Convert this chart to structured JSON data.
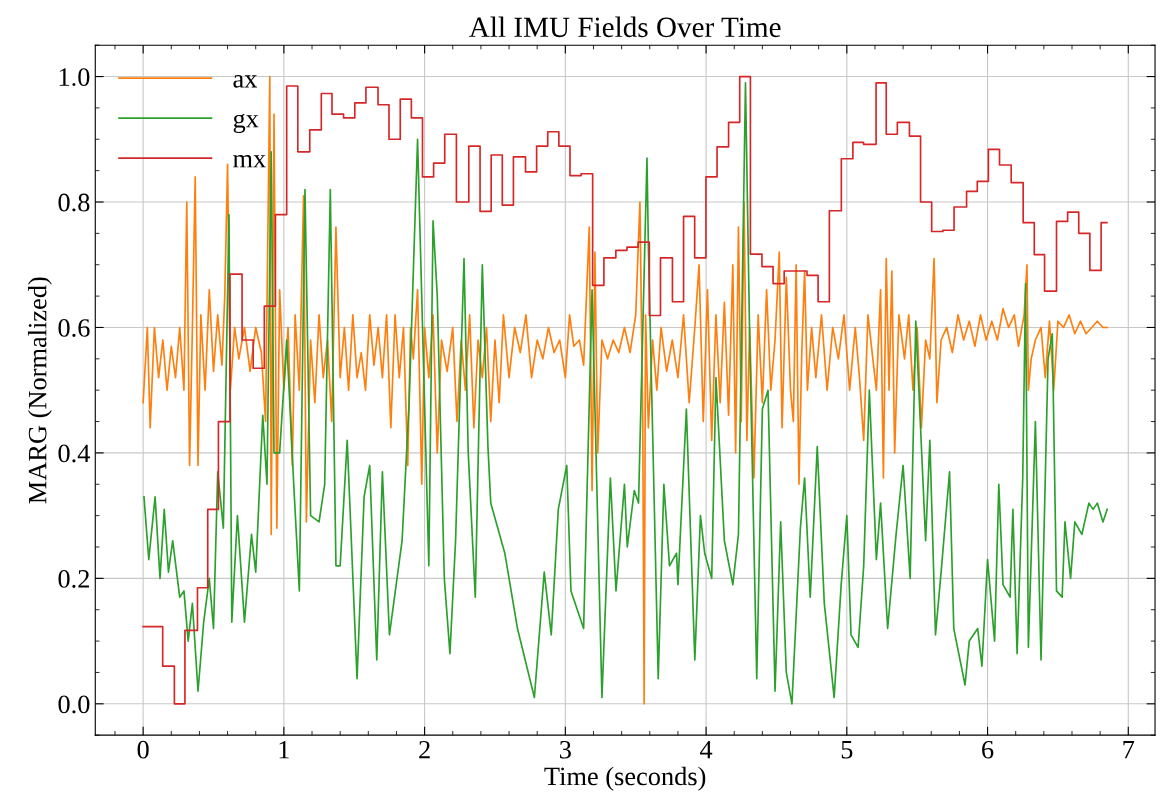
{
  "chart_data": {
    "type": "line",
    "title": "All IMU Fields Over Time",
    "xlabel": "Time (seconds)",
    "ylabel": "MARG (Normalized)",
    "xlim": [
      -0.34,
      7.19
    ],
    "ylim": [
      -0.05,
      1.05
    ],
    "xticks": [
      0,
      1,
      2,
      3,
      4,
      5,
      6,
      7
    ],
    "yticks": [
      {
        "value": 0,
        "label": "0.0"
      },
      {
        "value": 0.2,
        "label": "0.2"
      },
      {
        "value": 0.4,
        "label": "0.4"
      },
      {
        "value": 0.6,
        "label": "0.6"
      },
      {
        "value": 0.8,
        "label": "0.8"
      },
      {
        "value": 1,
        "label": "1.0"
      }
    ],
    "grid": true,
    "legend": "top left",
    "series": [
      {
        "name": "ax",
        "color": "#ff7f0e",
        "x": [
          0.0,
          0.03,
          0.05,
          0.08,
          0.11,
          0.14,
          0.17,
          0.2,
          0.23,
          0.26,
          0.29,
          0.31,
          0.33,
          0.35,
          0.37,
          0.39,
          0.41,
          0.44,
          0.47,
          0.5,
          0.53,
          0.56,
          0.58,
          0.6,
          0.62,
          0.65,
          0.68,
          0.72,
          0.76,
          0.8,
          0.84,
          0.87,
          0.9,
          0.91,
          0.93,
          0.95,
          0.97,
          1.0,
          1.03,
          1.06,
          1.08,
          1.11,
          1.14,
          1.16,
          1.19,
          1.22,
          1.25,
          1.28,
          1.31,
          1.34,
          1.37,
          1.4,
          1.43,
          1.46,
          1.49,
          1.52,
          1.55,
          1.58,
          1.61,
          1.64,
          1.67,
          1.7,
          1.73,
          1.76,
          1.79,
          1.82,
          1.85,
          1.88,
          1.9,
          1.92,
          1.95,
          1.98,
          2.0,
          2.03,
          2.06,
          2.09,
          2.12,
          2.16,
          2.2,
          2.23,
          2.26,
          2.29,
          2.32,
          2.35,
          2.38,
          2.41,
          2.44,
          2.47,
          2.5,
          2.53,
          2.56,
          2.6,
          2.64,
          2.68,
          2.72,
          2.76,
          2.8,
          2.84,
          2.88,
          2.92,
          2.96,
          3.0,
          3.03,
          3.06,
          3.1,
          3.13,
          3.17,
          3.19,
          3.21,
          3.23,
          3.26,
          3.3,
          3.34,
          3.38,
          3.42,
          3.46,
          3.5,
          3.53,
          3.55,
          3.56,
          3.57,
          3.59,
          3.62,
          3.65,
          3.68,
          3.72,
          3.76,
          3.8,
          3.84,
          3.88,
          3.92,
          3.95,
          3.98,
          4.01,
          4.04,
          4.07,
          4.1,
          4.13,
          4.16,
          4.19,
          4.21,
          4.23,
          4.25,
          4.27,
          4.29,
          4.31,
          4.34,
          4.37,
          4.4,
          4.43,
          4.46,
          4.49,
          4.52,
          4.54,
          4.57,
          4.6,
          4.62,
          4.64,
          4.66,
          4.68,
          4.7,
          4.72,
          4.75,
          4.78,
          4.82,
          4.86,
          4.9,
          4.94,
          4.98,
          5.02,
          5.06,
          5.09,
          5.12,
          5.15,
          5.18,
          5.21,
          5.24,
          5.26,
          5.28,
          5.3,
          5.32,
          5.34,
          5.37,
          5.41,
          5.44,
          5.47,
          5.5,
          5.53,
          5.56,
          5.59,
          5.62,
          5.64,
          5.67,
          5.71,
          5.75,
          5.79,
          5.83,
          5.87,
          5.91,
          5.95,
          5.99,
          6.03,
          6.07,
          6.11,
          6.15,
          6.19,
          6.22,
          6.26,
          6.28,
          6.29,
          6.31,
          6.34,
          6.38,
          6.41,
          6.44,
          6.47,
          6.5,
          6.54,
          6.58,
          6.62,
          6.66,
          6.7,
          6.74,
          6.78,
          6.82,
          6.85
        ],
        "values": [
          0.48,
          0.6,
          0.44,
          0.6,
          0.52,
          0.58,
          0.5,
          0.57,
          0.52,
          0.6,
          0.5,
          0.8,
          0.38,
          0.6,
          0.84,
          0.38,
          0.62,
          0.5,
          0.66,
          0.53,
          0.62,
          0.54,
          0.65,
          0.86,
          0.5,
          0.6,
          0.55,
          0.6,
          0.53,
          0.6,
          0.56,
          0.45,
          1.0,
          0.27,
          0.94,
          0.28,
          0.66,
          0.5,
          0.6,
          0.38,
          0.62,
          0.5,
          0.81,
          0.29,
          0.58,
          0.48,
          0.62,
          0.52,
          0.58,
          0.45,
          0.76,
          0.52,
          0.6,
          0.5,
          0.62,
          0.52,
          0.56,
          0.5,
          0.62,
          0.54,
          0.6,
          0.52,
          0.62,
          0.44,
          0.62,
          0.52,
          0.6,
          0.38,
          0.6,
          0.55,
          0.66,
          0.35,
          0.6,
          0.52,
          0.62,
          0.4,
          0.58,
          0.53,
          0.6,
          0.45,
          0.58,
          0.5,
          0.62,
          0.44,
          0.58,
          0.52,
          0.6,
          0.45,
          0.58,
          0.48,
          0.62,
          0.52,
          0.6,
          0.56,
          0.62,
          0.52,
          0.58,
          0.55,
          0.6,
          0.56,
          0.58,
          0.52,
          0.62,
          0.57,
          0.58,
          0.54,
          0.76,
          0.34,
          0.72,
          0.4,
          0.58,
          0.55,
          0.58,
          0.56,
          0.6,
          0.56,
          0.62,
          0.8,
          0.45,
          0.0,
          0.62,
          0.44,
          0.58,
          0.5,
          0.6,
          0.53,
          0.58,
          0.52,
          0.62,
          0.48,
          0.6,
          0.7,
          0.45,
          0.66,
          0.42,
          0.62,
          0.48,
          0.64,
          0.46,
          0.7,
          0.4,
          0.76,
          0.45,
          0.8,
          0.42,
          0.6,
          0.36,
          0.62,
          0.48,
          0.66,
          0.5,
          0.58,
          0.72,
          0.44,
          0.68,
          0.5,
          0.45,
          0.7,
          0.35,
          0.56,
          0.69,
          0.5,
          0.6,
          0.52,
          0.62,
          0.5,
          0.6,
          0.55,
          0.62,
          0.5,
          0.6,
          0.52,
          0.42,
          0.62,
          0.56,
          0.5,
          0.66,
          0.36,
          0.71,
          0.5,
          0.69,
          0.4,
          0.62,
          0.55,
          0.62,
          0.5,
          0.6,
          0.44,
          0.58,
          0.55,
          0.71,
          0.48,
          0.58,
          0.6,
          0.56,
          0.62,
          0.58,
          0.61,
          0.57,
          0.62,
          0.58,
          0.61,
          0.58,
          0.63,
          0.6,
          0.62,
          0.57,
          0.62,
          0.7,
          0.5,
          0.55,
          0.58,
          0.6,
          0.52,
          0.61,
          0.5,
          0.61,
          0.6,
          0.62,
          0.59,
          0.61,
          0.59,
          0.6,
          0.61,
          0.6,
          0.6
        ]
      },
      {
        "name": "gx",
        "color": "#2ca02c",
        "x": [
          0.006,
          0.04,
          0.085,
          0.12,
          0.15,
          0.18,
          0.21,
          0.26,
          0.29,
          0.32,
          0.35,
          0.39,
          0.43,
          0.47,
          0.5,
          0.53,
          0.57,
          0.61,
          0.63,
          0.67,
          0.72,
          0.77,
          0.8,
          0.85,
          0.88,
          0.91,
          0.93,
          0.97,
          1.02,
          1.07,
          1.11,
          1.15,
          1.19,
          1.25,
          1.29,
          1.33,
          1.37,
          1.4,
          1.45,
          1.52,
          1.57,
          1.61,
          1.66,
          1.7,
          1.75,
          1.84,
          1.89,
          1.95,
          2.03,
          2.06,
          2.09,
          2.14,
          2.18,
          2.22,
          2.28,
          2.31,
          2.36,
          2.41,
          2.45,
          2.47,
          2.57,
          2.66,
          2.78,
          2.85,
          2.9,
          2.95,
          3.01,
          3.04,
          3.13,
          3.19,
          3.26,
          3.32,
          3.36,
          3.42,
          3.44,
          3.49,
          3.52,
          3.58,
          3.59,
          3.66,
          3.7,
          3.74,
          3.79,
          3.8,
          3.86,
          3.92,
          3.96,
          3.99,
          4.04,
          4.07,
          4.13,
          4.19,
          4.23,
          4.28,
          4.31,
          4.36,
          4.4,
          4.44,
          4.49,
          4.53,
          4.57,
          4.61,
          4.67,
          4.7,
          4.74,
          4.79,
          4.84,
          4.91,
          4.96,
          5.0,
          5.03,
          5.08,
          5.12,
          5.16,
          5.21,
          5.24,
          5.29,
          5.35,
          5.4,
          5.45,
          5.49,
          5.56,
          5.59,
          5.63,
          5.67,
          5.73,
          5.76,
          5.84,
          5.87,
          5.93,
          5.96,
          6.0,
          6.05,
          6.08,
          6.11,
          6.16,
          6.18,
          6.21,
          6.25,
          6.27,
          6.29,
          6.34,
          6.38,
          6.43,
          6.46,
          6.49,
          6.53,
          6.55,
          6.59,
          6.62,
          6.67,
          6.72,
          6.75,
          6.78,
          6.82,
          6.85
        ],
        "values": [
          0.33,
          0.23,
          0.33,
          0.2,
          0.31,
          0.21,
          0.26,
          0.17,
          0.18,
          0.1,
          0.16,
          0.02,
          0.13,
          0.2,
          0.12,
          0.37,
          0.28,
          0.78,
          0.13,
          0.3,
          0.13,
          0.27,
          0.21,
          0.46,
          0.35,
          0.88,
          0.4,
          0.4,
          0.58,
          0.35,
          0.18,
          0.82,
          0.3,
          0.29,
          0.35,
          0.82,
          0.22,
          0.22,
          0.42,
          0.04,
          0.33,
          0.38,
          0.07,
          0.37,
          0.11,
          0.26,
          0.48,
          0.9,
          0.22,
          0.77,
          0.65,
          0.2,
          0.08,
          0.26,
          0.71,
          0.4,
          0.17,
          0.7,
          0.41,
          0.32,
          0.24,
          0.12,
          0.01,
          0.21,
          0.11,
          0.31,
          0.38,
          0.18,
          0.12,
          0.66,
          0.01,
          0.36,
          0.18,
          0.35,
          0.25,
          0.34,
          0.32,
          0.87,
          0.73,
          0.04,
          0.35,
          0.22,
          0.24,
          0.19,
          0.47,
          0.07,
          0.3,
          0.24,
          0.2,
          0.52,
          0.26,
          0.19,
          0.27,
          0.99,
          0.58,
          0.04,
          0.47,
          0.5,
          0.02,
          0.29,
          0.05,
          0.0,
          0.28,
          0.36,
          0.17,
          0.41,
          0.16,
          0.01,
          0.19,
          0.3,
          0.11,
          0.09,
          0.22,
          0.5,
          0.23,
          0.32,
          0.12,
          0.27,
          0.38,
          0.2,
          0.61,
          0.26,
          0.42,
          0.11,
          0.21,
          0.37,
          0.12,
          0.03,
          0.1,
          0.12,
          0.06,
          0.23,
          0.1,
          0.35,
          0.19,
          0.17,
          0.31,
          0.08,
          0.36,
          0.67,
          0.09,
          0.45,
          0.07,
          0.55,
          0.59,
          0.18,
          0.17,
          0.29,
          0.2,
          0.29,
          0.27,
          0.32,
          0.31,
          0.32,
          0.29,
          0.31
        ]
      },
      {
        "name": "mx",
        "color": "#d62728",
        "type": "step",
        "x": [
          0.0,
          0.139,
          0.222,
          0.297,
          0.386,
          0.459,
          0.535,
          0.617,
          0.703,
          0.782,
          0.861,
          0.94,
          1.02,
          1.099,
          1.184,
          1.266,
          1.342,
          1.424,
          1.504,
          1.583,
          1.669,
          1.747,
          1.827,
          1.906,
          1.985,
          2.064,
          2.143,
          2.226,
          2.314,
          2.394,
          2.473,
          2.552,
          2.631,
          2.717,
          2.796,
          2.875,
          2.954,
          3.033,
          3.112,
          3.194,
          3.274,
          3.359,
          3.438,
          3.517,
          3.597,
          3.676,
          3.761,
          3.84,
          3.919,
          3.999,
          4.078,
          4.16,
          4.239,
          4.315,
          4.397,
          4.476,
          4.555,
          4.717,
          4.796,
          4.876,
          4.961,
          5.043,
          5.119,
          5.208,
          5.28,
          5.359,
          5.445,
          5.524,
          5.603,
          5.683,
          5.762,
          5.851,
          5.927,
          6.006,
          6.085,
          6.168,
          6.253,
          6.332,
          6.405,
          6.49,
          6.569,
          6.648,
          6.727,
          6.807,
          6.848
        ],
        "values": [
          0.123,
          0.06,
          0.0,
          0.117,
          0.185,
          0.31,
          0.45,
          0.685,
          0.58,
          0.535,
          0.634,
          0.78,
          0.985,
          0.88,
          0.915,
          0.973,
          0.94,
          0.934,
          0.958,
          0.983,
          0.955,
          0.9,
          0.964,
          0.934,
          0.84,
          0.862,
          0.908,
          0.8,
          0.889,
          0.785,
          0.875,
          0.795,
          0.872,
          0.848,
          0.889,
          0.912,
          0.889,
          0.842,
          0.845,
          0.667,
          0.711,
          0.723,
          0.728,
          0.736,
          0.619,
          0.711,
          0.641,
          0.777,
          0.711,
          0.84,
          0.888,
          0.927,
          1.0,
          0.717,
          0.697,
          0.67,
          0.69,
          0.683,
          0.641,
          0.786,
          0.869,
          0.895,
          0.892,
          0.99,
          0.908,
          0.927,
          0.905,
          0.8,
          0.753,
          0.755,
          0.792,
          0.817,
          0.833,
          0.884,
          0.859,
          0.831,
          0.767,
          0.716,
          0.658,
          0.769,
          0.784,
          0.75,
          0.691,
          0.767,
          0.767
        ]
      }
    ]
  }
}
